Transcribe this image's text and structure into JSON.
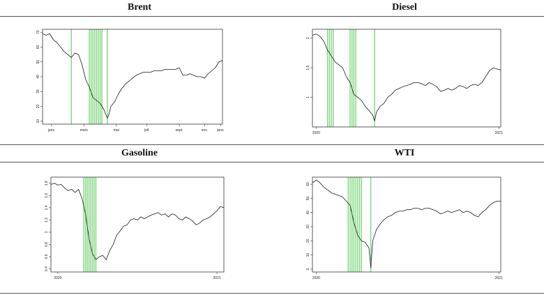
{
  "titles": {
    "brent": "Brent",
    "diesel": "Diesel",
    "gasoline": "Gasoline",
    "wti": "WTI"
  },
  "colors": {
    "line": "#1a1a1a",
    "band": "#7ed67e",
    "frame": "#333333"
  },
  "chart_data": [
    {
      "id": "brent",
      "type": "line",
      "title": "Brent",
      "xlim": [
        0,
        100
      ],
      "ylim": [
        8,
        72
      ],
      "x_ticks": [
        {
          "x": 5,
          "label": "janv."
        },
        {
          "x": 23,
          "label": "mars"
        },
        {
          "x": 41,
          "label": "mai"
        },
        {
          "x": 58,
          "label": "juil."
        },
        {
          "x": 76,
          "label": "sept."
        },
        {
          "x": 90,
          "label": "nov."
        },
        {
          "x": 99,
          "label": "janv."
        }
      ],
      "y_ticks": [
        10,
        20,
        30,
        40,
        50,
        60,
        70
      ],
      "bands_x": [
        16,
        26,
        27,
        28,
        29,
        30,
        31,
        32,
        33,
        36
      ],
      "series": [
        {
          "x": [
            0,
            2,
            4,
            6,
            8,
            10,
            12,
            14,
            16,
            18,
            20,
            22,
            24,
            26,
            28,
            30,
            32,
            34,
            36,
            37,
            38,
            40,
            42,
            44,
            46,
            48,
            50,
            52,
            54,
            56,
            58,
            60,
            62,
            64,
            66,
            68,
            70,
            72,
            74,
            76,
            78,
            80,
            82,
            84,
            86,
            88,
            90,
            92,
            94,
            96,
            98,
            100
          ],
          "values": [
            69,
            68,
            69,
            65,
            63,
            60,
            57,
            55,
            53,
            56,
            55,
            48,
            38,
            33,
            26,
            24,
            22,
            18,
            12,
            15,
            20,
            23,
            28,
            32,
            35,
            37,
            39,
            41,
            42,
            43,
            43,
            43,
            44,
            44,
            44,
            45,
            45,
            45,
            45,
            46,
            41,
            41,
            42,
            41,
            40,
            40,
            39,
            42,
            44,
            46,
            50,
            51
          ]
        }
      ]
    },
    {
      "id": "diesel",
      "type": "line",
      "title": "Diesel",
      "xlim": [
        0,
        100
      ],
      "ylim": [
        0.5,
        2.15
      ],
      "x_ticks": [
        {
          "x": 2,
          "label": "2020"
        },
        {
          "x": 99,
          "label": "2021"
        }
      ],
      "y_ticks": [
        1.0,
        1.5,
        2.0
      ],
      "bands_x": [
        8,
        9,
        10,
        11,
        20,
        21,
        22,
        23,
        33
      ],
      "series": [
        {
          "x": [
            0,
            2,
            4,
            6,
            8,
            10,
            12,
            14,
            16,
            18,
            20,
            22,
            24,
            26,
            28,
            30,
            32,
            33,
            34,
            36,
            38,
            40,
            42,
            44,
            46,
            48,
            50,
            52,
            54,
            56,
            58,
            60,
            62,
            64,
            66,
            68,
            70,
            72,
            74,
            76,
            78,
            80,
            82,
            84,
            86,
            88,
            90,
            92,
            94,
            96,
            98,
            100
          ],
          "values": [
            2.05,
            2.07,
            2.03,
            1.95,
            1.8,
            1.7,
            1.6,
            1.55,
            1.5,
            1.35,
            1.25,
            1.05,
            1.0,
            0.95,
            0.85,
            0.78,
            0.7,
            0.6,
            0.75,
            0.85,
            0.9,
            1.0,
            1.05,
            1.12,
            1.15,
            1.18,
            1.2,
            1.22,
            1.25,
            1.25,
            1.23,
            1.2,
            1.25,
            1.22,
            1.18,
            1.1,
            1.12,
            1.15,
            1.12,
            1.15,
            1.2,
            1.18,
            1.15,
            1.2,
            1.22,
            1.2,
            1.25,
            1.35,
            1.45,
            1.5,
            1.48,
            1.46
          ]
        }
      ]
    },
    {
      "id": "gasoline",
      "type": "line",
      "title": "Gasoline",
      "xlim": [
        0,
        100
      ],
      "ylim": [
        0.35,
        1.9
      ],
      "x_ticks": [
        {
          "x": 4,
          "label": "2020"
        },
        {
          "x": 96,
          "label": "2021"
        }
      ],
      "y_ticks": [
        0.4,
        0.6,
        0.8,
        1.0,
        1.2,
        1.4,
        1.6,
        1.8
      ],
      "bands_x": [
        19,
        20,
        21,
        22,
        23,
        24,
        25,
        26
      ],
      "series": [
        {
          "x": [
            0,
            2,
            4,
            6,
            8,
            10,
            12,
            14,
            16,
            18,
            20,
            22,
            24,
            26,
            28,
            30,
            32,
            34,
            36,
            38,
            40,
            42,
            44,
            46,
            48,
            50,
            52,
            54,
            56,
            58,
            60,
            62,
            64,
            66,
            68,
            70,
            72,
            74,
            76,
            78,
            80,
            82,
            84,
            86,
            88,
            90,
            92,
            94,
            96,
            98,
            100
          ],
          "values": [
            1.78,
            1.8,
            1.77,
            1.78,
            1.72,
            1.68,
            1.7,
            1.65,
            1.7,
            1.55,
            1.3,
            0.9,
            0.65,
            0.55,
            0.6,
            0.62,
            0.55,
            0.7,
            0.8,
            0.95,
            1.02,
            1.1,
            1.12,
            1.2,
            1.22,
            1.2,
            1.25,
            1.22,
            1.25,
            1.28,
            1.3,
            1.32,
            1.28,
            1.3,
            1.25,
            1.3,
            1.28,
            1.22,
            1.2,
            1.25,
            1.22,
            1.18,
            1.12,
            1.15,
            1.2,
            1.22,
            1.25,
            1.3,
            1.35,
            1.42,
            1.4
          ]
        }
      ]
    },
    {
      "id": "wti",
      "type": "line",
      "title": "WTI",
      "xlim": [
        0,
        100
      ],
      "ylim": [
        -2,
        65
      ],
      "x_ticks": [
        {
          "x": 2,
          "label": "2020"
        },
        {
          "x": 99,
          "label": "2021"
        }
      ],
      "y_ticks": [
        0,
        10,
        20,
        30,
        40,
        50,
        60
      ],
      "bands_x": [
        19,
        20,
        21,
        22,
        23,
        24,
        25,
        26,
        31
      ],
      "series": [
        {
          "x": [
            0,
            2,
            4,
            6,
            8,
            10,
            12,
            14,
            16,
            18,
            20,
            22,
            24,
            26,
            28,
            30,
            31,
            32,
            34,
            36,
            38,
            40,
            42,
            44,
            46,
            48,
            50,
            52,
            54,
            56,
            58,
            60,
            62,
            64,
            66,
            68,
            70,
            72,
            74,
            76,
            78,
            80,
            82,
            84,
            86,
            88,
            90,
            92,
            94,
            96,
            98,
            100
          ],
          "values": [
            61,
            63,
            61,
            58,
            56,
            54,
            53,
            52,
            51,
            48,
            45,
            33,
            24,
            20,
            19,
            15,
            1,
            20,
            28,
            32,
            35,
            37,
            38,
            40,
            41,
            41,
            42,
            42,
            43,
            43,
            42,
            43,
            43,
            42,
            41,
            39,
            40,
            41,
            40,
            41,
            42,
            40,
            41,
            40,
            38,
            37,
            40,
            42,
            45,
            47,
            48,
            48
          ]
        }
      ]
    }
  ]
}
